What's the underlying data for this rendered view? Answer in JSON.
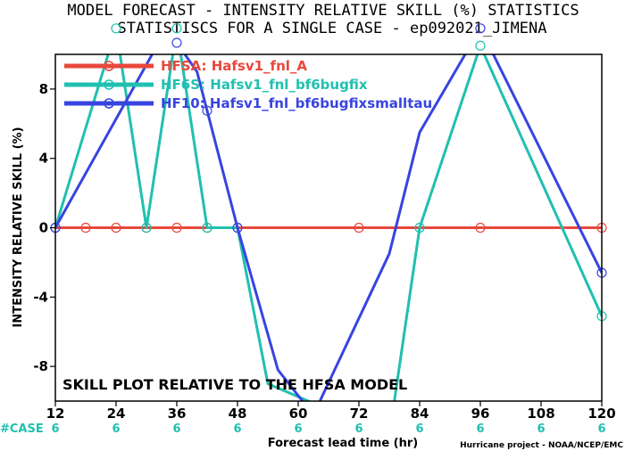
{
  "title_line1": "MODEL FORECAST - INTENSITY RELATIVE SKILL (%) STATISTICS",
  "title_line2": "STATISTISCS FOR A SINGLE CASE - ep092021_JIMENA",
  "annotation": "SKILL PLOT RELATIVE TO THE HFSA MODEL",
  "credit": "Hurricane project - NOAA/NCEP/EMC",
  "case_label": "#CASE",
  "colors": {
    "hfsa": "#e8483c",
    "hf6s": "#20c0b0",
    "hf10": "#3844e0"
  },
  "chart_data": {
    "type": "line",
    "xlabel": "Forecast lead time (hr)",
    "ylabel": "INTENSITY RELATIVE SKILL (%)",
    "xlim": [
      12,
      120
    ],
    "ylim": [
      -10,
      10
    ],
    "xticks": [
      12,
      24,
      36,
      48,
      60,
      72,
      84,
      96,
      108,
      120
    ],
    "yticks": [
      -8,
      -4,
      0,
      4,
      8
    ],
    "case_counts": [
      6,
      6,
      6,
      6,
      6,
      6,
      6,
      6,
      6,
      6
    ],
    "series": [
      {
        "name": "HFSA: Hafsv1_fnl_A",
        "color": "#e8483c",
        "x": [
          12,
          18,
          24,
          30,
          36,
          42,
          48,
          72,
          96,
          120
        ],
        "y": [
          0,
          0,
          0,
          0,
          0,
          0,
          0,
          0,
          0,
          0
        ],
        "marker_x": [
          12,
          18,
          24,
          30,
          36,
          42,
          48,
          72,
          96,
          120
        ]
      },
      {
        "name": "HF6S: Hafsv1_fnl_bf6bugfix",
        "color": "#20c0b0",
        "x": [
          12,
          24,
          30,
          36,
          42,
          48,
          54,
          78,
          84,
          96,
          120
        ],
        "y": [
          0,
          11.5,
          0,
          11.5,
          0,
          0,
          -9.0,
          -12.0,
          0,
          10.5,
          -5.1
        ],
        "marker_x": [
          12,
          24,
          30,
          36,
          42,
          48,
          84,
          96,
          120
        ]
      },
      {
        "name": "HF10: Hafsv1_fnl_bf6bugfixsmalltau",
        "color": "#3844e0",
        "x": [
          12,
          34,
          40,
          48,
          56,
          63,
          78,
          84,
          96,
          120
        ],
        "y": [
          0,
          11.5,
          9.0,
          0,
          -8.2,
          -10.8,
          -1.5,
          5.5,
          11.5,
          -2.6
        ],
        "marker_x": [
          12,
          36,
          42,
          48,
          96,
          120
        ]
      }
    ]
  }
}
